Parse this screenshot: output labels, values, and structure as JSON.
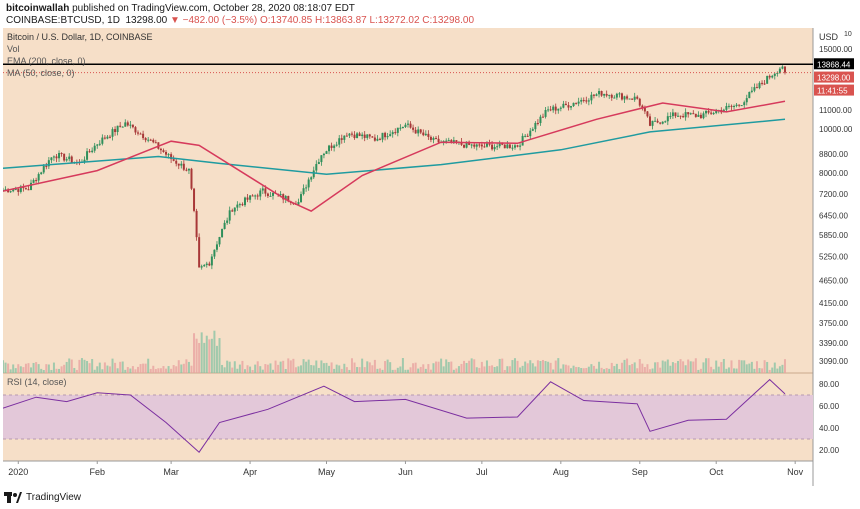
{
  "header": {
    "publisher": "bitcoinwallah",
    "published_text": "published on TradingView.com, October 28, 2020 08:18:07 EDT",
    "symbol": "COINBASE:BTCUSD, 1D",
    "last": "13298.00",
    "change": "▼ −482.00 (−3.5%)",
    "ohlc": "O:13740.85 H:13863.87 L:13272.02 C:13298.00"
  },
  "legend": {
    "title": "Bitcoin / U.S. Dollar, 1D, COINBASE",
    "vol": "Vol",
    "ema": "EMA (200, close, 0)",
    "ma": "MA (50, close, 0)",
    "rsi": "RSI (14, close)"
  },
  "price_axis": {
    "currency": "USD",
    "superscript": "10",
    "ticks": [
      "15000.00",
      "13868.44",
      "13298.00",
      "11:41:55",
      "11000.00",
      "10000.00",
      "8800.00",
      "8000.00",
      "7200.00",
      "6450.00",
      "5850.00",
      "5250.00",
      "4650.00",
      "4150.00",
      "3750.00",
      "3390.00",
      "3090.00"
    ]
  },
  "rsi_axis": {
    "ticks": [
      "80.00",
      "60.00",
      "40.00",
      "20.00"
    ]
  },
  "time_axis": {
    "ticks": [
      "2020",
      "Feb",
      "Mar",
      "Apr",
      "May",
      "Jun",
      "Jul",
      "Aug",
      "Sep",
      "Oct",
      "Nov"
    ]
  },
  "tags": {
    "high_price": "13868.44",
    "last_price": "13298.00",
    "countdown": "11:41:55"
  },
  "colors": {
    "background": "#f6dfc8",
    "up": "#2f8f5b",
    "down": "#a83838",
    "ema": "#1f9ba0",
    "ma": "#d63a5c",
    "rsi_line": "#7b2fa0",
    "rsi_band": "#e3c8d9",
    "last_tag": "#d9534f",
    "high_line": "#000000"
  },
  "footer": {
    "brand": "TradingView"
  },
  "chart_data": [
    {
      "type": "candlestick",
      "title": "Bitcoin / U.S. Dollar, 1D, COINBASE",
      "scale": "log",
      "ylim": [
        3000,
        16000
      ],
      "x_ticks": [
        "2020",
        "Feb",
        "Mar",
        "Apr",
        "May",
        "Jun",
        "Jul",
        "Aug",
        "Sep",
        "Oct",
        "Nov"
      ],
      "close_anchors": [
        {
          "date": "2019-12-26",
          "close": 7350
        },
        {
          "date": "2020-01-05",
          "close": 7400
        },
        {
          "date": "2020-01-15",
          "close": 8800
        },
        {
          "date": "2020-01-25",
          "close": 8400
        },
        {
          "date": "2020-02-01",
          "close": 9300
        },
        {
          "date": "2020-02-12",
          "close": 10300
        },
        {
          "date": "2020-02-20",
          "close": 9600
        },
        {
          "date": "2020-03-01",
          "close": 8600
        },
        {
          "date": "2020-03-08",
          "close": 8100
        },
        {
          "date": "2020-03-12",
          "close": 4900
        },
        {
          "date": "2020-03-16",
          "close": 5100
        },
        {
          "date": "2020-03-25",
          "close": 6700
        },
        {
          "date": "2020-04-06",
          "close": 7300
        },
        {
          "date": "2020-04-20",
          "close": 6900
        },
        {
          "date": "2020-04-29",
          "close": 8800
        },
        {
          "date": "2020-05-09",
          "close": 9800
        },
        {
          "date": "2020-05-20",
          "close": 9500
        },
        {
          "date": "2020-06-01",
          "close": 10200
        },
        {
          "date": "2020-06-12",
          "close": 9400
        },
        {
          "date": "2020-06-30",
          "close": 9150
        },
        {
          "date": "2020-07-15",
          "close": 9200
        },
        {
          "date": "2020-07-27",
          "close": 11000
        },
        {
          "date": "2020-08-02",
          "close": 11200
        },
        {
          "date": "2020-08-17",
          "close": 12000
        },
        {
          "date": "2020-08-31",
          "close": 11650
        },
        {
          "date": "2020-09-05",
          "close": 10200
        },
        {
          "date": "2020-09-15",
          "close": 10750
        },
        {
          "date": "2020-09-25",
          "close": 10700
        },
        {
          "date": "2020-10-10",
          "close": 11300
        },
        {
          "date": "2020-10-21",
          "close": 12900
        },
        {
          "date": "2020-10-27",
          "close": 13780
        },
        {
          "date": "2020-10-28",
          "close": 13298
        }
      ],
      "ema_200": [
        {
          "date": "2019-12-26",
          "value": 8200
        },
        {
          "date": "2020-02-25",
          "value": 8700
        },
        {
          "date": "2020-03-20",
          "value": 8400
        },
        {
          "date": "2020-05-01",
          "value": 7950
        },
        {
          "date": "2020-06-15",
          "value": 8350
        },
        {
          "date": "2020-08-01",
          "value": 9000
        },
        {
          "date": "2020-09-05",
          "value": 9850
        },
        {
          "date": "2020-10-28",
          "value": 10500
        }
      ],
      "ma_50": [
        {
          "date": "2019-12-26",
          "value": 7300
        },
        {
          "date": "2020-02-01",
          "value": 8100
        },
        {
          "date": "2020-03-01",
          "value": 9400
        },
        {
          "date": "2020-03-12",
          "value": 9200
        },
        {
          "date": "2020-04-15",
          "value": 7000
        },
        {
          "date": "2020-04-25",
          "value": 6600
        },
        {
          "date": "2020-05-15",
          "value": 7900
        },
        {
          "date": "2020-06-15",
          "value": 9350
        },
        {
          "date": "2020-07-15",
          "value": 9300
        },
        {
          "date": "2020-08-15",
          "value": 10500
        },
        {
          "date": "2020-09-10",
          "value": 11400
        },
        {
          "date": "2020-10-05",
          "value": 10900
        },
        {
          "date": "2020-10-28",
          "value": 11500
        }
      ]
    },
    {
      "type": "line",
      "title": "RSI (14, close)",
      "ylim": [
        10,
        90
      ],
      "bands": [
        30,
        70
      ],
      "points": [
        {
          "date": "2019-12-26",
          "value": 58
        },
        {
          "date": "2020-01-08",
          "value": 68
        },
        {
          "date": "2020-01-20",
          "value": 64
        },
        {
          "date": "2020-02-01",
          "value": 72
        },
        {
          "date": "2020-02-14",
          "value": 70
        },
        {
          "date": "2020-02-28",
          "value": 45
        },
        {
          "date": "2020-03-12",
          "value": 18
        },
        {
          "date": "2020-03-20",
          "value": 45
        },
        {
          "date": "2020-04-08",
          "value": 57
        },
        {
          "date": "2020-04-30",
          "value": 78
        },
        {
          "date": "2020-05-12",
          "value": 64
        },
        {
          "date": "2020-06-01",
          "value": 66
        },
        {
          "date": "2020-06-25",
          "value": 49
        },
        {
          "date": "2020-07-15",
          "value": 50
        },
        {
          "date": "2020-07-28",
          "value": 82
        },
        {
          "date": "2020-08-10",
          "value": 65
        },
        {
          "date": "2020-08-31",
          "value": 62
        },
        {
          "date": "2020-09-05",
          "value": 37
        },
        {
          "date": "2020-09-20",
          "value": 47
        },
        {
          "date": "2020-10-05",
          "value": 48
        },
        {
          "date": "2020-10-22",
          "value": 84
        },
        {
          "date": "2020-10-28",
          "value": 71
        }
      ]
    },
    {
      "type": "bar",
      "title": "Vol"
    }
  ]
}
